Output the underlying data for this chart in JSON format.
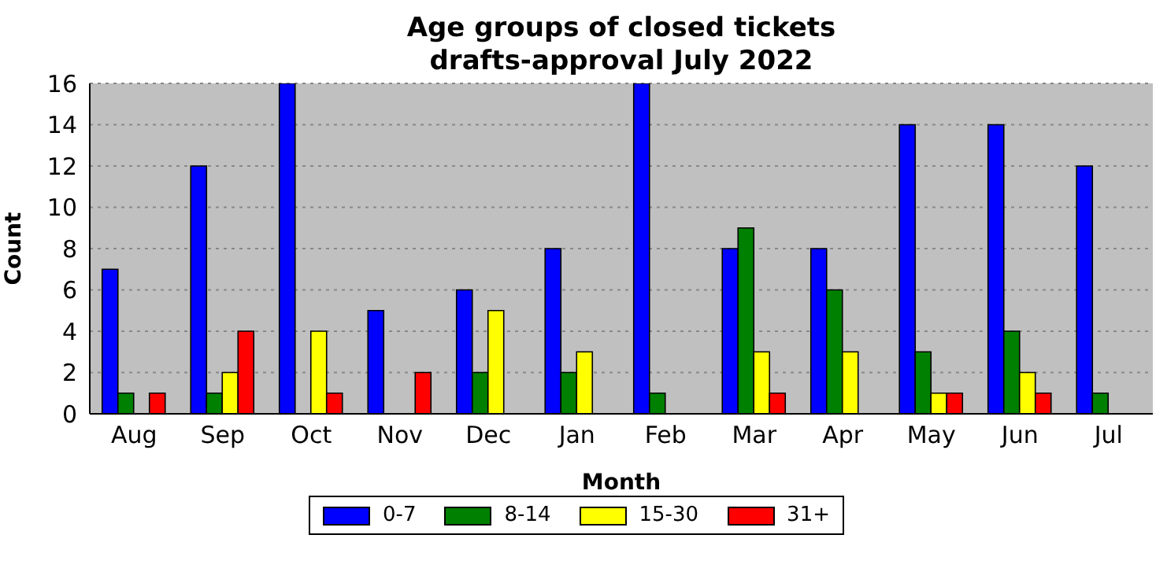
{
  "chart_data": {
    "type": "bar",
    "title": "Age groups of closed tickets\ndrafts-approval July 2022",
    "xlabel": "Month",
    "ylabel": "Count",
    "categories": [
      "Aug",
      "Sep",
      "Oct",
      "Nov",
      "Dec",
      "Jan",
      "Feb",
      "Mar",
      "Apr",
      "May",
      "Jun",
      "Jul"
    ],
    "series": [
      {
        "name": "0-7",
        "color": "#0000ff",
        "values": [
          7,
          12,
          16,
          5,
          6,
          8,
          16,
          8,
          8,
          14,
          14,
          12
        ]
      },
      {
        "name": "8-14",
        "color": "#008000",
        "values": [
          1,
          1,
          0,
          0,
          2,
          2,
          1,
          9,
          6,
          3,
          4,
          1
        ]
      },
      {
        "name": "15-30",
        "color": "#ffff00",
        "values": [
          0,
          2,
          4,
          0,
          5,
          3,
          0,
          3,
          3,
          1,
          2,
          0
        ]
      },
      {
        "name": "31+",
        "color": "#ff0000",
        "values": [
          1,
          4,
          1,
          2,
          0,
          0,
          0,
          1,
          0,
          1,
          1,
          0
        ]
      }
    ],
    "ylim": [
      0,
      16
    ],
    "yticks": [
      0,
      2,
      4,
      6,
      8,
      10,
      12,
      14,
      16
    ],
    "grid": "y",
    "legend": "bottom"
  }
}
